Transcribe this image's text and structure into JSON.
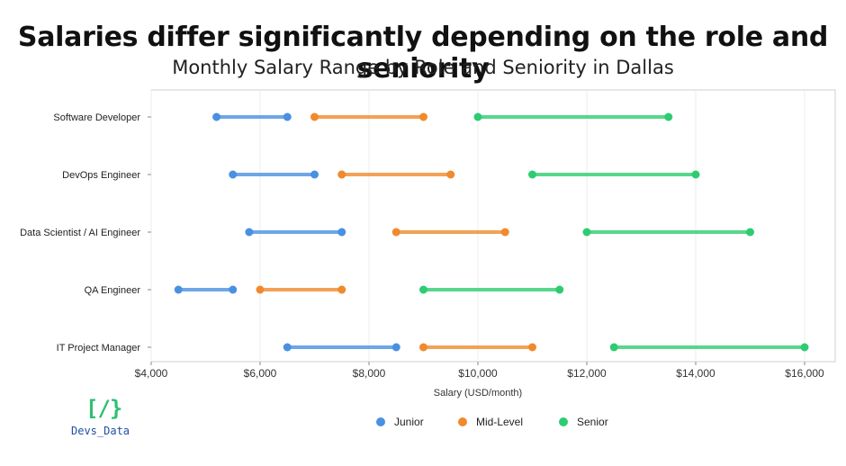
{
  "title": "Salaries differ significantly depending on the role and seniority",
  "subtitle": "Monthly Salary Range by Role and Seniority in Dallas",
  "logo": {
    "mark": "[/}",
    "text": "Devs_Data"
  },
  "chart_data": {
    "type": "dumbbell",
    "title": "Monthly Salary Range by Role and Seniority in Dallas",
    "xlabel": "Salary (USD/month)",
    "ylabel": "",
    "xlim": [
      4000,
      16000
    ],
    "xticks": [
      4000,
      6000,
      8000,
      10000,
      12000,
      14000,
      16000
    ],
    "xtick_labels": [
      "$4,000",
      "$6,000",
      "$8,000",
      "$10,000",
      "$12,000",
      "$14,000",
      "$16,000"
    ],
    "grid": "vertical",
    "legend_position": "bottom",
    "categories": [
      "Software Developer",
      "DevOps Engineer",
      "Data Scientist / AI Engineer",
      "QA Engineer",
      "IT Project Manager"
    ],
    "series": [
      {
        "name": "Junior",
        "color": "#4a90e2",
        "ranges": [
          [
            5200,
            6500
          ],
          [
            5500,
            7000
          ],
          [
            5800,
            7500
          ],
          [
            4500,
            5500
          ],
          [
            6500,
            8500
          ]
        ]
      },
      {
        "name": "Mid-Level",
        "color": "#f08a2c",
        "ranges": [
          [
            7000,
            9000
          ],
          [
            7500,
            9500
          ],
          [
            8500,
            10500
          ],
          [
            6000,
            7500
          ],
          [
            9000,
            11000
          ]
        ]
      },
      {
        "name": "Senior",
        "color": "#2ecc71",
        "ranges": [
          [
            10000,
            13500
          ],
          [
            11000,
            14000
          ],
          [
            12000,
            15000
          ],
          [
            9000,
            11500
          ],
          [
            12500,
            16000
          ]
        ]
      }
    ]
  }
}
